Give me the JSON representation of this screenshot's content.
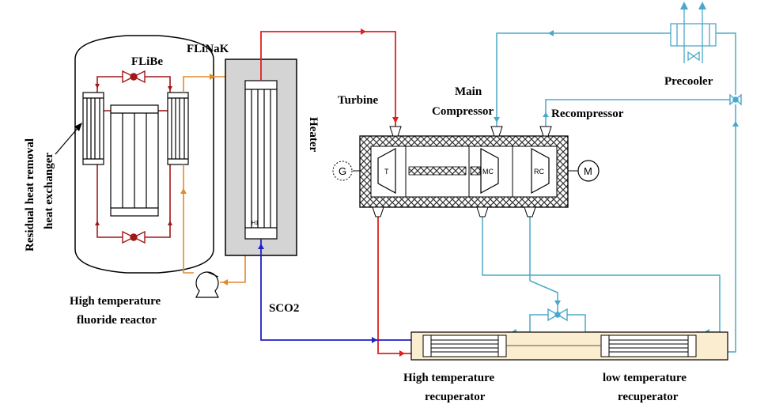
{
  "labels": {
    "flibe": "FLiBe",
    "flinak": "FLiNaK",
    "heater": "Heater",
    "turbine": "Turbine",
    "main_compressor_line1": "Main",
    "main_compressor_line2": "Compressor",
    "recompressor": "Recompressor",
    "precooler": "Precooler",
    "residual_line1": "Residual heat removal",
    "residual_line2": "heat exchanger",
    "reactor_line1": "High temperature",
    "reactor_line2": "fluoride reactor",
    "sco2": "SCO2",
    "htr_line1": "High temperature",
    "htr_line2": "recuperator",
    "ltr_line1": "low temperature",
    "ltr_line2": "recuperator"
  },
  "machine_labels": {
    "generator": "G",
    "turbine": "T",
    "main_compressor": "MC",
    "recompressor": "RC",
    "motor": "M",
    "heater_tag": "H1"
  },
  "colors": {
    "hot_loop": "#e02020",
    "primary_loop": "#a01818",
    "salt_loop": "#e08a2a",
    "cold_loop": "#2020c8",
    "cooling_loop": "#4aa8c8",
    "heater_fill": "#d4d4d4",
    "recuperator_fill": "#fbedd0"
  }
}
